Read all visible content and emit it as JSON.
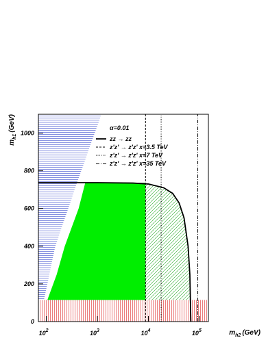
{
  "chart_data": {
    "type": "region-plot",
    "xlabel": "m",
    "xlabel_sub": "h2",
    "xlabel_unit": "(GeV)",
    "ylabel": "m",
    "ylabel_sub": "h1",
    "ylabel_unit": "(GeV)",
    "xscale": "log",
    "xlim": [
      70,
      150000
    ],
    "xticks": [
      {
        "value": 100,
        "label": "10",
        "exponent": "2"
      },
      {
        "value": 1000,
        "label": "10",
        "exponent": "3"
      },
      {
        "value": 10000,
        "label": "10",
        "exponent": "4"
      },
      {
        "value": 100000,
        "label": "10",
        "exponent": "5"
      }
    ],
    "ylim": [
      0,
      1100
    ],
    "yticks": [
      0,
      200,
      400,
      600,
      800,
      1000
    ],
    "legend_title": "α=0.01",
    "regions": [
      {
        "color": "#3344cc",
        "pattern": "hlines",
        "x": [
          70,
          90,
          150,
          400,
          1200,
          70
        ],
        "y": [
          115,
          115,
          400,
          737,
          1100,
          1100
        ]
      },
      {
        "color": "#00ee00",
        "pattern": "solid",
        "x": [
          105,
          160,
          230,
          430,
          580,
          8800,
          8800
        ],
        "y": [
          115,
          250,
          400,
          600,
          737,
          737,
          115
        ]
      },
      {
        "color": "#22aa22",
        "pattern": "diag",
        "x": [
          8800,
          10000,
          20000,
          30000,
          40000,
          50000,
          60000,
          65000,
          67000,
          8800
        ],
        "y": [
          732,
          730,
          710,
          680,
          630,
          550,
          400,
          250,
          115,
          115
        ]
      },
      {
        "color": "#dd2222",
        "pattern": "vlines",
        "x": [
          70,
          150000,
          150000,
          70
        ],
        "y": [
          0,
          0,
          115,
          115
        ]
      }
    ],
    "series": [
      {
        "name": "zz → zz",
        "color": "#000000",
        "dash": "",
        "width": 1.8,
        "x": [
          70,
          1000,
          5000,
          10000,
          20000,
          30000,
          40000,
          50000,
          60000,
          65000,
          68000
        ],
        "y": [
          737,
          737,
          735,
          730,
          710,
          680,
          630,
          550,
          400,
          250,
          0
        ]
      },
      {
        "name": "z'z' → z'z' x=3.5 TeV",
        "color": "#000000",
        "dash": "3,2",
        "width": 1,
        "x": [
          8800,
          8800
        ],
        "y": [
          0,
          1100
        ]
      },
      {
        "name": "z'z' → z'z' x=7 TeV",
        "color": "#000000",
        "dash": "1,1.5",
        "width": 1,
        "x": [
          17800,
          17800
        ],
        "y": [
          0,
          1100
        ]
      },
      {
        "name": "z'z' → z'z' x=35 TeV",
        "color": "#000000",
        "dash": "5,2,1,2",
        "width": 1,
        "x": [
          93000,
          93000
        ],
        "y": [
          0,
          1100
        ]
      }
    ]
  }
}
